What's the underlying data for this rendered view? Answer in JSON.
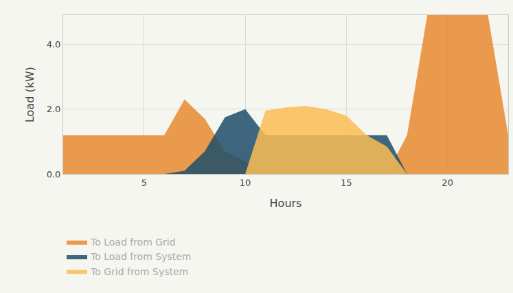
{
  "chart_data": {
    "type": "area",
    "x_label": "Hours",
    "y_label": "Load (kW)",
    "x": [
      1,
      2,
      3,
      4,
      5,
      6,
      7,
      8,
      9,
      10,
      11,
      12,
      13,
      14,
      15,
      16,
      17,
      18,
      19,
      20,
      21,
      22,
      23
    ],
    "series": [
      {
        "name": "To Load from Grid",
        "color": "#e8892f",
        "values": [
          1.2,
          1.2,
          1.2,
          1.2,
          1.2,
          1.2,
          2.3,
          1.7,
          0.7,
          0.4,
          0,
          0,
          0,
          0,
          0,
          0,
          0,
          1.2,
          4.9,
          4.9,
          4.9,
          4.9,
          1.2
        ]
      },
      {
        "name": "To Load from System",
        "color": "#1d4e6b",
        "values": [
          0,
          0,
          0,
          0,
          0,
          0,
          0.1,
          0.7,
          1.75,
          2.0,
          1.2,
          1.2,
          1.2,
          1.2,
          1.2,
          1.2,
          1.2,
          0,
          0,
          0,
          0,
          0,
          0
        ]
      },
      {
        "name": "To Grid from System",
        "color": "#fbbd53",
        "values": [
          0,
          0,
          0,
          0,
          0,
          0,
          0,
          0,
          0,
          0,
          1.95,
          2.05,
          2.1,
          2.0,
          1.8,
          1.2,
          0.85,
          0,
          0,
          0,
          0,
          0,
          0
        ]
      }
    ],
    "xlim": [
      1,
      23
    ],
    "xticks": [
      5,
      10,
      15,
      20
    ],
    "ylim": [
      0,
      4.9
    ],
    "yticks": [
      {
        "value": 0,
        "label": "0.0"
      },
      {
        "value": 2,
        "label": "2.0"
      },
      {
        "value": 4,
        "label": "4.0"
      }
    ],
    "grid": true,
    "stacked": false,
    "legend": "bottom left"
  }
}
